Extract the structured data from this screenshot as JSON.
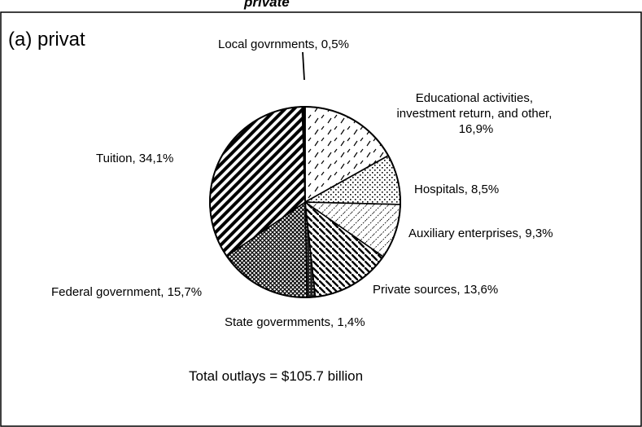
{
  "header": {
    "clipped_text": "private"
  },
  "chart_data": {
    "type": "pie",
    "panel_label": "(a) privat",
    "start_angle_deg": 0,
    "direction": "clockwise",
    "slices": [
      {
        "label": "Educational activities, investment return, and other, 16,9%",
        "value": 16.9,
        "pattern": "dashes"
      },
      {
        "label": "Hospitals, 8,5%",
        "value": 8.5,
        "pattern": "dots"
      },
      {
        "label": "Auxiliary enterprises, 9,3%",
        "value": 9.3,
        "pattern": "thin-diagonal"
      },
      {
        "label": "Private sources, 13,6%",
        "value": 13.6,
        "pattern": "bold-diagonal"
      },
      {
        "label": "State govermments, 1,4%",
        "value": 1.4,
        "pattern": "dark-bricks"
      },
      {
        "label": "Federal government, 15,7%",
        "value": 15.7,
        "pattern": "crosshatch"
      },
      {
        "label": "Tuition, 34,1%",
        "value": 34.1,
        "pattern": "heavy-diagonal"
      },
      {
        "label": "Local govrnments, 0,5%",
        "value": 0.5,
        "pattern": "solid"
      }
    ],
    "annotation": "Total outlays = $105.7 billion",
    "legend": "none",
    "grid": false
  }
}
